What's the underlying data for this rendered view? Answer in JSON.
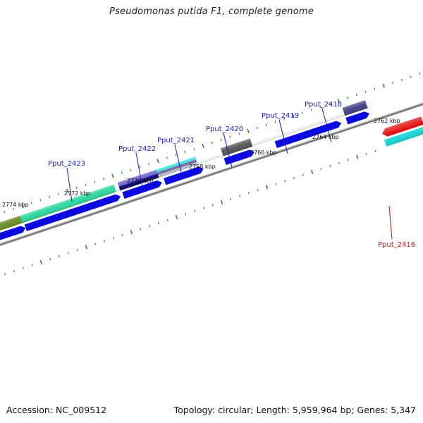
{
  "title": "Pseudomonas putida F1, complete genome",
  "footer": {
    "accession": "Accession: NC_009512",
    "summary": "Topology: circular; Length: 5,959,964 bp; Genes: 5,347"
  },
  "colors": {
    "background": "#ffffff",
    "backbone": "#8a8a8a",
    "tick": "#2e8b2e",
    "forward_label": "#1a1acc",
    "reverse_label": "#cc1111"
  },
  "chart_data": {
    "type": "linear-genome-map",
    "backbone": "double gray line",
    "position_labels": [
      {
        "kbp": 2774,
        "text": "2774 kbp"
      },
      {
        "kbp": 2772,
        "text": "2772 kbp"
      },
      {
        "kbp": 2770,
        "text": "2770 kbp"
      },
      {
        "kbp": 2768,
        "text": "2768 kbp"
      },
      {
        "kbp": 2766,
        "text": "2766 kbp"
      },
      {
        "kbp": 2764,
        "text": "2764 kbp"
      },
      {
        "kbp": 2762,
        "text": "2762 kbp"
      }
    ],
    "gene_labels": [
      {
        "text": "Pput_2423",
        "strand": "forward"
      },
      {
        "text": "Pput_2422",
        "strand": "forward"
      },
      {
        "text": "Pput_2421",
        "strand": "forward"
      },
      {
        "text": "Pput_2420",
        "strand": "forward"
      },
      {
        "text": "Pput_2419",
        "strand": "forward"
      },
      {
        "text": "Pput_2418",
        "strand": "forward"
      },
      {
        "text": "Pput_2416",
        "strand": "reverse"
      }
    ],
    "feature_colors": {
      "cds": "#0a0ae0",
      "blast_green": "#2ed8a0",
      "olive": "#6b8e23",
      "dark_gray": "#555555",
      "slate": "#45408a",
      "navy": "#0a0a70",
      "cyan": "#1ee0e0",
      "red": "#e00000",
      "light_gray": "#b0b0b0",
      "purple": "#6a5acd"
    }
  }
}
